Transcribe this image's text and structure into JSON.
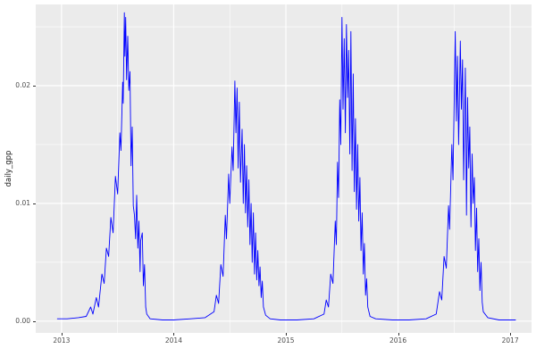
{
  "chart_data": {
    "type": "line",
    "title": "",
    "xlabel": "",
    "ylabel": "daily_gpp",
    "legend": "none",
    "grid_on": true,
    "colors": {
      "line": "#0000FF",
      "panel": "#EBEBEB",
      "grid": "#FFFFFF",
      "tick_text": "#4D4D4D",
      "tick_mark": "#333333"
    },
    "x_range": [
      2012.77,
      2017.19
    ],
    "y_range": [
      -0.001,
      0.0269
    ],
    "x_ticks": [
      {
        "value": 2013,
        "label": "2013"
      },
      {
        "value": 2014,
        "label": "2014"
      },
      {
        "value": 2015,
        "label": "2015"
      },
      {
        "value": 2016,
        "label": "2016"
      },
      {
        "value": 2017,
        "label": "2017"
      }
    ],
    "y_ticks": [
      {
        "value": 0.0,
        "label": "0.00"
      },
      {
        "value": 0.01,
        "label": "0.01"
      },
      {
        "value": 0.02,
        "label": "0.02"
      }
    ],
    "grid": {
      "minor_x": [
        2013.5,
        2014.5,
        2015.5,
        2016.5
      ],
      "minor_y": [
        0.005,
        0.015,
        0.025
      ]
    },
    "points": [
      [
        2012.96,
        0.0002
      ],
      [
        2013.05,
        0.0002
      ],
      [
        2013.15,
        0.0003
      ],
      [
        2013.22,
        0.0004
      ],
      [
        2013.26,
        0.0012
      ],
      [
        2013.28,
        0.0006
      ],
      [
        2013.31,
        0.002
      ],
      [
        2013.33,
        0.0012
      ],
      [
        2013.36,
        0.004
      ],
      [
        2013.38,
        0.0032
      ],
      [
        2013.4,
        0.0062
      ],
      [
        2013.42,
        0.0055
      ],
      [
        2013.44,
        0.0088
      ],
      [
        2013.46,
        0.0075
      ],
      [
        2013.48,
        0.0123
      ],
      [
        2013.5,
        0.0108
      ],
      [
        2013.52,
        0.016
      ],
      [
        2013.53,
        0.0145
      ],
      [
        2013.545,
        0.0203
      ],
      [
        2013.55,
        0.0185
      ],
      [
        2013.56,
        0.0262
      ],
      [
        2013.565,
        0.0225
      ],
      [
        2013.572,
        0.0258
      ],
      [
        2013.58,
        0.0205
      ],
      [
        2013.59,
        0.0242
      ],
      [
        2013.6,
        0.0196
      ],
      [
        2013.61,
        0.0212
      ],
      [
        2013.62,
        0.0132
      ],
      [
        2013.63,
        0.0165
      ],
      [
        2013.64,
        0.0098
      ],
      [
        2013.65,
        0.009
      ],
      [
        2013.66,
        0.007
      ],
      [
        2013.67,
        0.0107
      ],
      [
        2013.68,
        0.0062
      ],
      [
        2013.69,
        0.0085
      ],
      [
        2013.7,
        0.0042
      ],
      [
        2013.705,
        0.0068
      ],
      [
        2013.72,
        0.0075
      ],
      [
        2013.73,
        0.003
      ],
      [
        2013.74,
        0.0048
      ],
      [
        2013.75,
        0.0012
      ],
      [
        2013.76,
        0.0006
      ],
      [
        2013.79,
        0.0002
      ],
      [
        2013.9,
        0.0001
      ],
      [
        2014.0,
        0.0001
      ],
      [
        2014.15,
        0.0002
      ],
      [
        2014.28,
        0.0003
      ],
      [
        2014.36,
        0.0008
      ],
      [
        2014.38,
        0.0022
      ],
      [
        2014.4,
        0.0015
      ],
      [
        2014.42,
        0.0048
      ],
      [
        2014.44,
        0.0038
      ],
      [
        2014.46,
        0.009
      ],
      [
        2014.47,
        0.007
      ],
      [
        2014.49,
        0.0125
      ],
      [
        2014.5,
        0.01
      ],
      [
        2014.52,
        0.0148
      ],
      [
        2014.53,
        0.0128
      ],
      [
        2014.545,
        0.0204
      ],
      [
        2014.555,
        0.016
      ],
      [
        2014.565,
        0.0198
      ],
      [
        2014.575,
        0.013
      ],
      [
        2014.585,
        0.0186
      ],
      [
        2014.595,
        0.0118
      ],
      [
        2014.61,
        0.0163
      ],
      [
        2014.62,
        0.01
      ],
      [
        2014.63,
        0.015
      ],
      [
        2014.64,
        0.0092
      ],
      [
        2014.65,
        0.0132
      ],
      [
        2014.66,
        0.008
      ],
      [
        2014.67,
        0.012
      ],
      [
        2014.68,
        0.0065
      ],
      [
        2014.69,
        0.01
      ],
      [
        2014.7,
        0.005
      ],
      [
        2014.71,
        0.0092
      ],
      [
        2014.72,
        0.004
      ],
      [
        2014.73,
        0.0075
      ],
      [
        2014.74,
        0.0035
      ],
      [
        2014.75,
        0.006
      ],
      [
        2014.76,
        0.003
      ],
      [
        2014.77,
        0.0046
      ],
      [
        2014.78,
        0.002
      ],
      [
        2014.79,
        0.0034
      ],
      [
        2014.8,
        0.0012
      ],
      [
        2014.82,
        0.0005
      ],
      [
        2014.86,
        0.0002
      ],
      [
        2014.95,
        0.0001
      ],
      [
        2015.1,
        0.0001
      ],
      [
        2015.25,
        0.0002
      ],
      [
        2015.34,
        0.0006
      ],
      [
        2015.36,
        0.0018
      ],
      [
        2015.38,
        0.0012
      ],
      [
        2015.4,
        0.004
      ],
      [
        2015.42,
        0.0032
      ],
      [
        2015.44,
        0.0085
      ],
      [
        2015.45,
        0.0065
      ],
      [
        2015.46,
        0.0135
      ],
      [
        2015.47,
        0.0105
      ],
      [
        2015.48,
        0.0188
      ],
      [
        2015.49,
        0.015
      ],
      [
        2015.5,
        0.0258
      ],
      [
        2015.51,
        0.018
      ],
      [
        2015.52,
        0.024
      ],
      [
        2015.53,
        0.016
      ],
      [
        2015.54,
        0.0252
      ],
      [
        2015.55,
        0.019
      ],
      [
        2015.56,
        0.023
      ],
      [
        2015.57,
        0.0142
      ],
      [
        2015.58,
        0.0246
      ],
      [
        2015.59,
        0.0128
      ],
      [
        2015.6,
        0.021
      ],
      [
        2015.61,
        0.011
      ],
      [
        2015.62,
        0.0172
      ],
      [
        2015.63,
        0.0095
      ],
      [
        2015.64,
        0.015
      ],
      [
        2015.65,
        0.0085
      ],
      [
        2015.66,
        0.0122
      ],
      [
        2015.67,
        0.006
      ],
      [
        2015.68,
        0.0092
      ],
      [
        2015.69,
        0.004
      ],
      [
        2015.7,
        0.0066
      ],
      [
        2015.71,
        0.0022
      ],
      [
        2015.72,
        0.0036
      ],
      [
        2015.73,
        0.0012
      ],
      [
        2015.75,
        0.0004
      ],
      [
        2015.8,
        0.0002
      ],
      [
        2015.95,
        0.0001
      ],
      [
        2016.1,
        0.0001
      ],
      [
        2016.25,
        0.0002
      ],
      [
        2016.34,
        0.0006
      ],
      [
        2016.37,
        0.0025
      ],
      [
        2016.39,
        0.0018
      ],
      [
        2016.41,
        0.0055
      ],
      [
        2016.43,
        0.0045
      ],
      [
        2016.45,
        0.0098
      ],
      [
        2016.46,
        0.0078
      ],
      [
        2016.48,
        0.015
      ],
      [
        2016.49,
        0.012
      ],
      [
        2016.51,
        0.0246
      ],
      [
        2016.52,
        0.017
      ],
      [
        2016.53,
        0.0225
      ],
      [
        2016.54,
        0.015
      ],
      [
        2016.555,
        0.0238
      ],
      [
        2016.565,
        0.018
      ],
      [
        2016.575,
        0.0222
      ],
      [
        2016.585,
        0.012
      ],
      [
        2016.6,
        0.0215
      ],
      [
        2016.61,
        0.009
      ],
      [
        2016.62,
        0.019
      ],
      [
        2016.63,
        0.013
      ],
      [
        2016.64,
        0.0165
      ],
      [
        2016.65,
        0.008
      ],
      [
        2016.66,
        0.0142
      ],
      [
        2016.67,
        0.01
      ],
      [
        2016.68,
        0.0122
      ],
      [
        2016.69,
        0.006
      ],
      [
        2016.7,
        0.0096
      ],
      [
        2016.71,
        0.0042
      ],
      [
        2016.72,
        0.007
      ],
      [
        2016.73,
        0.0026
      ],
      [
        2016.74,
        0.005
      ],
      [
        2016.75,
        0.0016
      ],
      [
        2016.76,
        0.0008
      ],
      [
        2016.8,
        0.0003
      ],
      [
        2016.9,
        0.0001
      ],
      [
        2017.0,
        0.0001
      ],
      [
        2017.05,
        0.0001
      ]
    ]
  }
}
